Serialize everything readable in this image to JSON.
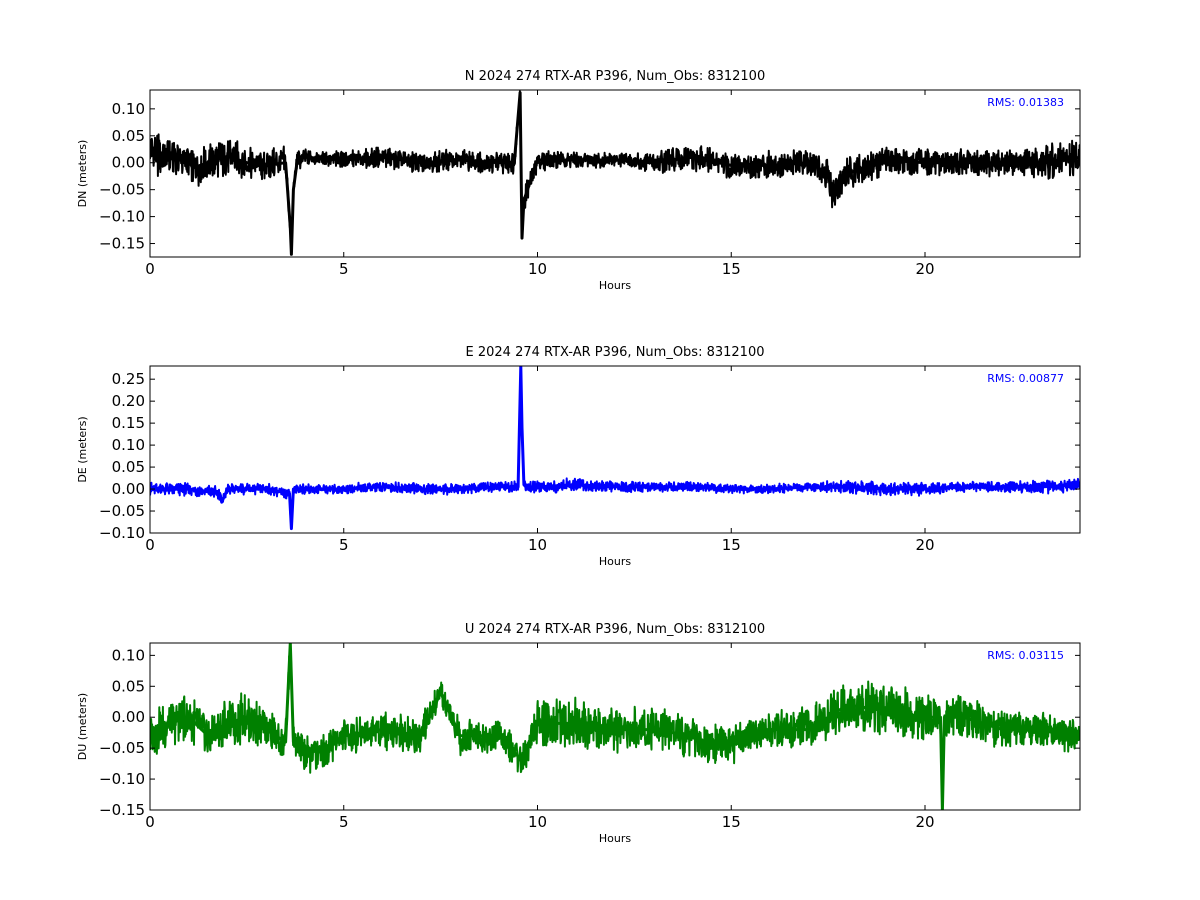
{
  "chart_data": [
    {
      "type": "line",
      "title": "N 2024 274 RTX-AR  P396, Num_Obs: 8312100",
      "xlabel": "Hours",
      "ylabel": "DN (meters)",
      "xlim": [
        0,
        24
      ],
      "ylim": [
        -0.175,
        0.135
      ],
      "xticks": [
        0,
        5,
        10,
        15,
        20
      ],
      "yticks": [
        -0.15,
        -0.1,
        -0.05,
        0.0,
        0.05,
        0.1
      ],
      "grid": false,
      "rms_label": "RMS:  0.01383",
      "series": [
        {
          "color": "#000000",
          "x": [
            0,
            0.5,
            1.0,
            1.1,
            1.5,
            2.0,
            2.5,
            3.0,
            3.5,
            3.62,
            3.65,
            3.7,
            3.8,
            4.0,
            5.0,
            6.0,
            7.0,
            8.0,
            9.0,
            9.4,
            9.55,
            9.6,
            9.65,
            10.0,
            11.0,
            12.0,
            13.0,
            14.0,
            15.0,
            16.0,
            17.0,
            17.5,
            17.6,
            18.0,
            19.0,
            20.0,
            21.0,
            22.0,
            23.0,
            24.0
          ],
          "y": [
            0.015,
            0.01,
            0.005,
            -0.01,
            0.0,
            0.012,
            0.0,
            -0.005,
            0.0,
            -0.12,
            -0.17,
            -0.05,
            0.005,
            0.01,
            0.005,
            0.01,
            0.0,
            0.005,
            0.0,
            0.0,
            0.13,
            -0.14,
            -0.07,
            0.005,
            0.005,
            0.005,
            0.0,
            0.01,
            -0.005,
            -0.005,
            0.0,
            -0.02,
            -0.06,
            -0.02,
            0.005,
            0.0,
            0.0,
            0.0,
            0.0,
            0.01
          ],
          "envelope": [
            0.045,
            0.035,
            0.035,
            0.04,
            0.03,
            0.04,
            0.03,
            0.03,
            0.03,
            0.02,
            0.01,
            0.02,
            0.02,
            0.015,
            0.015,
            0.02,
            0.02,
            0.02,
            0.02,
            0.02,
            0.01,
            0.01,
            0.02,
            0.02,
            0.015,
            0.015,
            0.02,
            0.025,
            0.025,
            0.025,
            0.025,
            0.03,
            0.03,
            0.03,
            0.025,
            0.025,
            0.025,
            0.025,
            0.03,
            0.04
          ]
        }
      ]
    },
    {
      "type": "line",
      "title": "E 2024 274 RTX-AR  P396, Num_Obs: 8312100",
      "xlabel": "Hours",
      "ylabel": "DE (meters)",
      "xlim": [
        0,
        24
      ],
      "ylim": [
        -0.1,
        0.28
      ],
      "xticks": [
        0,
        5,
        10,
        15,
        20
      ],
      "yticks": [
        -0.1,
        -0.05,
        0.0,
        0.05,
        0.1,
        0.15,
        0.2,
        0.25
      ],
      "grid": false,
      "rms_label": "RMS:  0.00877",
      "series": [
        {
          "color": "#0000ff",
          "x": [
            0,
            1.0,
            1.8,
            1.85,
            2.0,
            3.0,
            3.6,
            3.65,
            3.7,
            4.0,
            5.0,
            6.0,
            7.0,
            8.0,
            9.0,
            9.5,
            9.57,
            9.6,
            9.65,
            9.7,
            10.0,
            11.0,
            12.0,
            13.0,
            14.0,
            15.0,
            16.0,
            17.0,
            18.0,
            19.0,
            20.0,
            21.0,
            22.0,
            23.0,
            24.0
          ],
          "y": [
            0.0,
            0.0,
            -0.01,
            -0.03,
            0.0,
            0.0,
            -0.01,
            -0.09,
            0.0,
            0.0,
            0.0,
            0.005,
            0.0,
            0.0,
            0.005,
            0.005,
            0.28,
            0.14,
            0.01,
            0.005,
            0.005,
            0.01,
            0.005,
            0.005,
            0.005,
            0.0,
            0.0,
            0.005,
            0.005,
            0.0,
            0.0,
            0.005,
            0.005,
            0.005,
            0.01
          ],
          "envelope": [
            0.015,
            0.015,
            0.015,
            0.01,
            0.012,
            0.012,
            0.012,
            0.01,
            0.012,
            0.012,
            0.012,
            0.012,
            0.012,
            0.012,
            0.012,
            0.012,
            0.01,
            0.01,
            0.012,
            0.012,
            0.015,
            0.015,
            0.012,
            0.012,
            0.012,
            0.01,
            0.01,
            0.012,
            0.015,
            0.015,
            0.015,
            0.012,
            0.012,
            0.015,
            0.015
          ]
        }
      ]
    },
    {
      "type": "line",
      "title": "U 2024 274 RTX-AR  P396, Num_Obs: 8312100",
      "xlabel": "Hours",
      "ylabel": "DU (meters)",
      "xlim": [
        0,
        24
      ],
      "ylim": [
        -0.15,
        0.12
      ],
      "xticks": [
        0,
        5,
        10,
        15,
        20
      ],
      "yticks": [
        -0.15,
        -0.1,
        -0.05,
        0.0,
        0.05,
        0.1
      ],
      "grid": false,
      "rms_label": "RMS:  0.03115",
      "series": [
        {
          "color": "#008000",
          "x": [
            0,
            0.5,
            1.0,
            1.5,
            2.0,
            2.5,
            3.0,
            3.5,
            3.62,
            3.7,
            4.0,
            4.5,
            5.0,
            6.0,
            7.0,
            7.5,
            8.0,
            9.0,
            9.6,
            10.0,
            11.0,
            12.0,
            13.0,
            14.0,
            14.5,
            15.0,
            16.0,
            17.0,
            18.0,
            19.0,
            20.0,
            20.4,
            20.45,
            20.5,
            21.0,
            22.0,
            23.0,
            24.0
          ],
          "y": [
            -0.03,
            -0.01,
            0.0,
            -0.03,
            -0.01,
            0.0,
            -0.02,
            -0.04,
            0.12,
            -0.04,
            -0.06,
            -0.05,
            -0.03,
            -0.02,
            -0.03,
            0.04,
            -0.03,
            -0.03,
            -0.07,
            -0.01,
            -0.01,
            -0.02,
            -0.02,
            -0.03,
            -0.05,
            -0.04,
            -0.02,
            -0.02,
            0.02,
            0.01,
            0.0,
            0.0,
            -0.15,
            0.0,
            0.0,
            -0.02,
            -0.02,
            -0.03
          ],
          "envelope": [
            0.035,
            0.035,
            0.04,
            0.035,
            0.04,
            0.04,
            0.035,
            0.03,
            0.02,
            0.03,
            0.035,
            0.03,
            0.03,
            0.03,
            0.035,
            0.02,
            0.03,
            0.03,
            0.03,
            0.04,
            0.04,
            0.035,
            0.035,
            0.035,
            0.035,
            0.035,
            0.03,
            0.035,
            0.04,
            0.045,
            0.04,
            0.03,
            0.02,
            0.03,
            0.035,
            0.03,
            0.03,
            0.03
          ]
        }
      ]
    }
  ]
}
